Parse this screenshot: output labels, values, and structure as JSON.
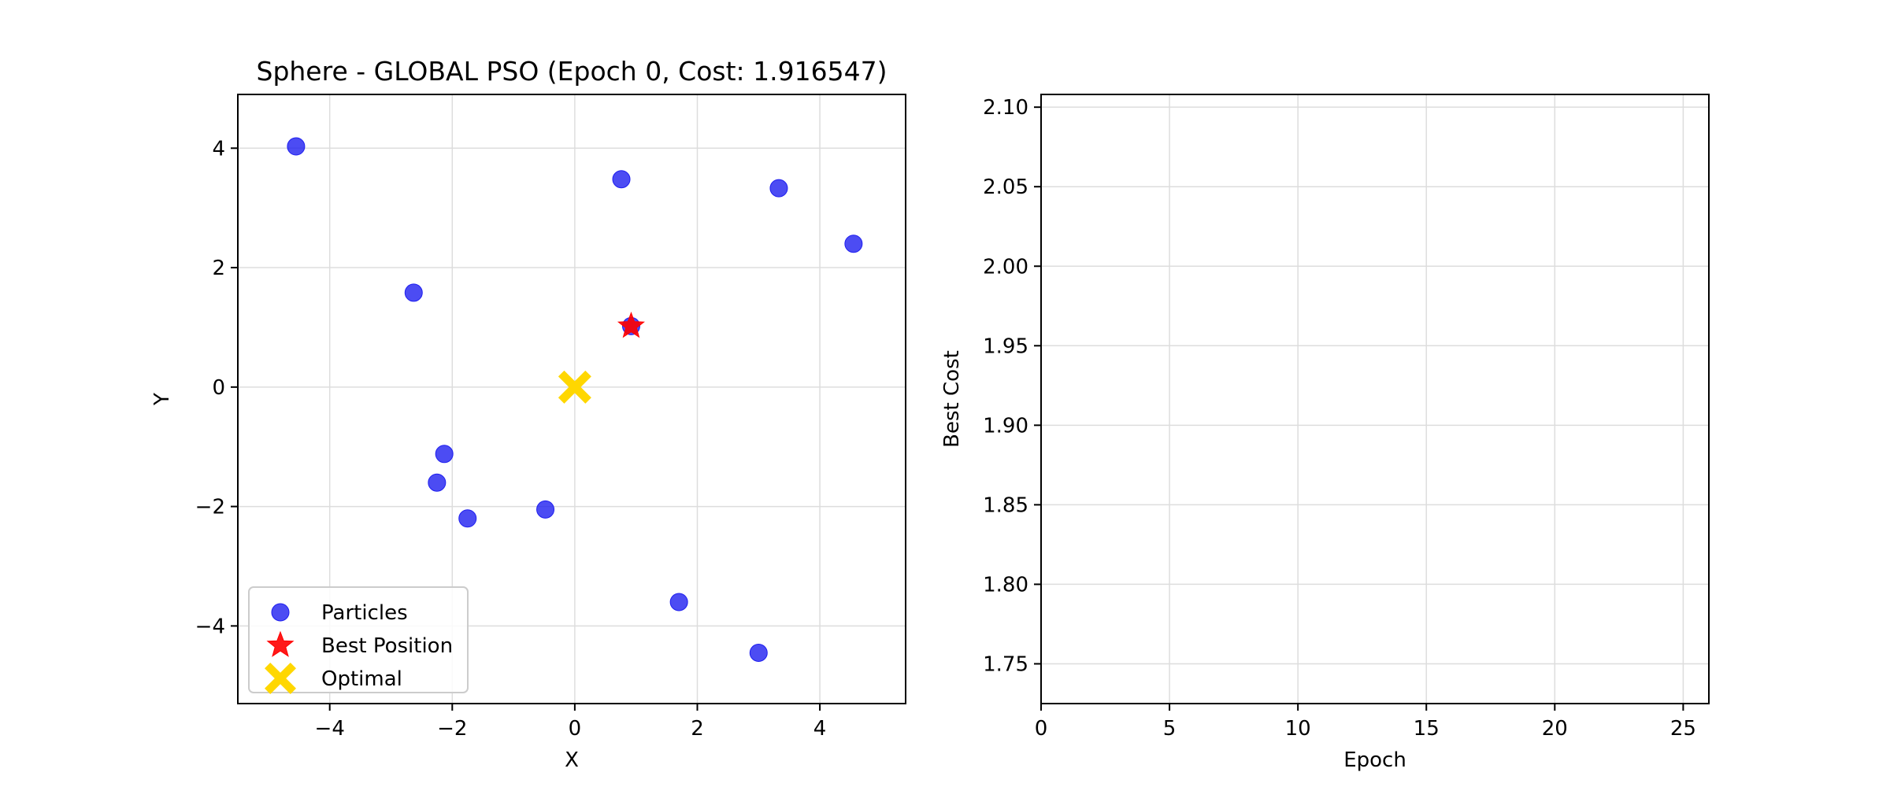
{
  "chart_data": [
    {
      "type": "scatter",
      "title": "Sphere - GLOBAL PSO (Epoch 0, Cost: 1.916547)",
      "xlabel": "X",
      "ylabel": "Y",
      "xlim": [
        -5.5,
        5.4
      ],
      "ylim": [
        -5.3,
        4.9
      ],
      "xticks": [
        -4,
        -2,
        0,
        2,
        4
      ],
      "yticks": [
        -4,
        -2,
        0,
        2,
        4
      ],
      "xtick_labels": [
        "−4",
        "−2",
        "0",
        "2",
        "4"
      ],
      "ytick_labels": [
        "−4",
        "−2",
        "0",
        "2",
        "4"
      ],
      "grid": true,
      "legend_position": "lower-left",
      "series": [
        {
          "name": "Particles",
          "marker": "circle",
          "color": "#1f1ff0",
          "points": [
            {
              "x": -4.55,
              "y": 4.03
            },
            {
              "x": -2.63,
              "y": 1.58
            },
            {
              "x": -2.13,
              "y": -1.12
            },
            {
              "x": -2.25,
              "y": -1.6
            },
            {
              "x": -1.75,
              "y": -2.2
            },
            {
              "x": -0.48,
              "y": -2.05
            },
            {
              "x": 0.76,
              "y": 3.48
            },
            {
              "x": 0.92,
              "y": 1.02
            },
            {
              "x": 3.33,
              "y": 3.33
            },
            {
              "x": 4.55,
              "y": 2.4
            },
            {
              "x": 1.7,
              "y": -3.6
            },
            {
              "x": 3.0,
              "y": -4.45
            }
          ]
        },
        {
          "name": "Best Position",
          "marker": "star",
          "color": "#ff0000",
          "points": [
            {
              "x": 0.92,
              "y": 1.02
            }
          ]
        },
        {
          "name": "Optimal",
          "marker": "x",
          "color": "#ffd700",
          "points": [
            {
              "x": 0.0,
              "y": 0.0
            }
          ]
        }
      ]
    },
    {
      "type": "line",
      "title": "",
      "xlabel": "Epoch",
      "ylabel": "Best Cost",
      "xlim": [
        0,
        26
      ],
      "ylim": [
        1.725,
        2.108
      ],
      "xticks": [
        0,
        5,
        10,
        15,
        20,
        25
      ],
      "yticks": [
        1.75,
        1.8,
        1.85,
        1.9,
        1.95,
        2.0,
        2.05,
        2.1
      ],
      "xtick_labels": [
        "0",
        "5",
        "10",
        "15",
        "20",
        "25"
      ],
      "ytick_labels": [
        "1.75",
        "1.80",
        "1.85",
        "1.90",
        "1.95",
        "2.00",
        "2.05",
        "2.10"
      ],
      "grid": true,
      "series": [
        {
          "values": []
        }
      ]
    }
  ]
}
